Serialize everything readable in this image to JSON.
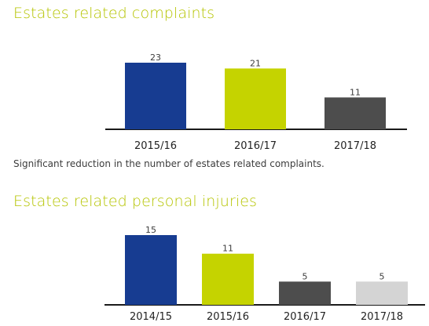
{
  "section1": {
    "title": "Estates related complaints",
    "caption": "Significant reduction in the number of estates related complaints."
  },
  "section2": {
    "title": "Estates related personal injuries"
  },
  "chart_data": [
    {
      "type": "bar",
      "title": "Estates related complaints",
      "categories": [
        "2015/16",
        "2016/17",
        "2017/18"
      ],
      "values": [
        23,
        21,
        11
      ],
      "colors": [
        "#173c91",
        "#c5d300",
        "#4d4d4d"
      ],
      "xlabel": "",
      "ylabel": "",
      "ylim": [
        0,
        23
      ],
      "grid": false,
      "legend": "none",
      "data_labels": true
    },
    {
      "type": "bar",
      "title": "Estates related personal injuries",
      "categories": [
        "2014/15",
        "2015/16",
        "2016/17",
        "2017/18"
      ],
      "values": [
        15,
        11,
        5,
        5
      ],
      "colors": [
        "#173c91",
        "#c5d300",
        "#4d4d4d",
        "#d4d4d4"
      ],
      "xlabel": "",
      "ylabel": "",
      "ylim": [
        0,
        15
      ],
      "grid": false,
      "legend": "none",
      "data_labels": true
    }
  ]
}
